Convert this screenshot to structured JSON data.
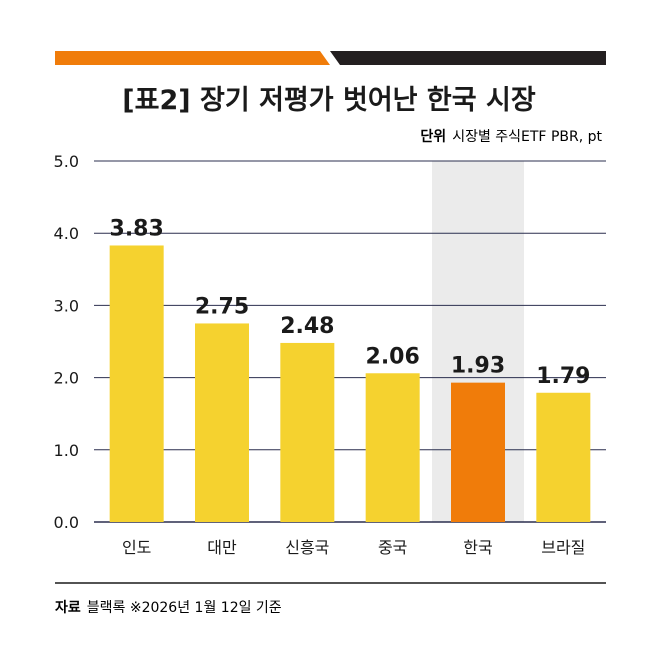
{
  "chart_data": {
    "type": "bar",
    "title": "[표2] 장기 저평가 벗어난 한국 시장",
    "unit_label": "단위",
    "unit_text": "시장별 주식ETF PBR, pt",
    "categories": [
      "인도",
      "대만",
      "신흥국",
      "중국",
      "한국",
      "브라질"
    ],
    "values": [
      3.83,
      2.75,
      2.48,
      2.06,
      1.93,
      1.79
    ],
    "value_labels": [
      "3.83",
      "2.75",
      "2.48",
      "2.06",
      "1.93",
      "1.79"
    ],
    "yticks": [
      "0.0",
      "1.0",
      "2.0",
      "3.0",
      "4.0",
      "5.0"
    ],
    "ylim": [
      0,
      5
    ],
    "grid": true,
    "highlight_category": "한국",
    "source_label": "자료",
    "source_text": "블랙록 ※2026년 1월 12일 기준",
    "colors": {
      "bar": "#f5d22f",
      "highlight_bar": "#f07c0a",
      "highlight_band": "#ebebeb",
      "top_accent": "#f07c0a",
      "top_dark": "#231f20",
      "grid": "#2b2f4f",
      "text": "#1a1a1a"
    }
  }
}
